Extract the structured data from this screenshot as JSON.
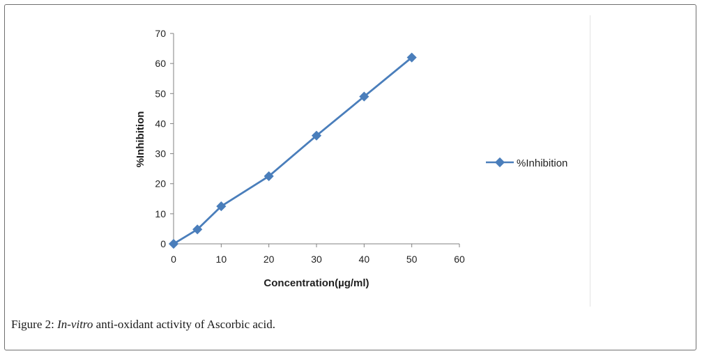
{
  "chart_data": {
    "type": "line",
    "xlabel": "Concentration(µg/ml)",
    "ylabel": "%Inhibition",
    "xlim": [
      0,
      60
    ],
    "ylim": [
      0,
      70
    ],
    "xticks": [
      0,
      10,
      20,
      30,
      40,
      50,
      60
    ],
    "yticks": [
      0,
      10,
      20,
      30,
      40,
      50,
      60,
      70
    ],
    "grid": false,
    "legend_position": "right",
    "series": [
      {
        "name": "%Inhibition",
        "color": "#4a7ebb",
        "marker": "diamond",
        "x": [
          0,
          5,
          10,
          20,
          30,
          40,
          50
        ],
        "y": [
          0,
          4.8,
          12.5,
          22.5,
          36,
          49,
          62
        ]
      }
    ]
  },
  "caption": {
    "label": "Figure 2:",
    "italic": "In-vitro",
    "rest": "anti-oxidant activity of Ascorbic acid."
  }
}
